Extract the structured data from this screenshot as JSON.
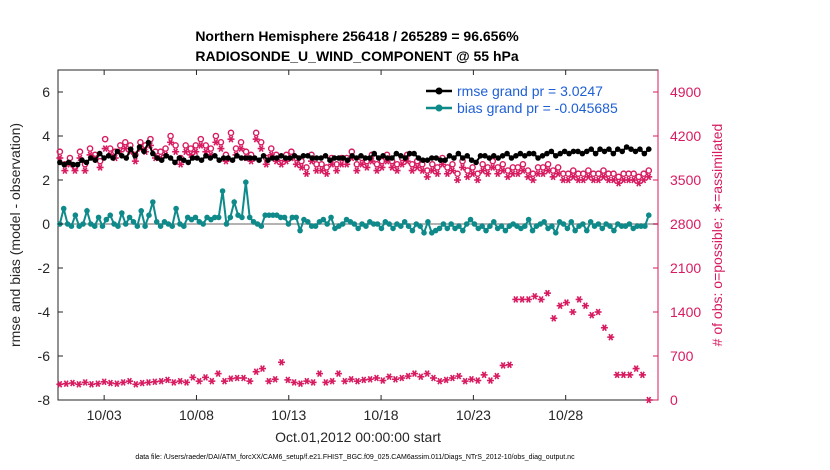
{
  "chart_data": {
    "type": "line",
    "title_line1": "Northern Hemisphere 256418 / 265289 = 96.656%",
    "title_line2": "RADIOSONDE_U_WIND_COMPONENT @ 55 hPa",
    "xlabel": "Oct.01,2012 00:00:00 start",
    "ylabel": "rmse and bias (model - observation)",
    "ylabel_right": "# of obs: o=possible; ∗=assimilated",
    "footnote": "data file: /Users/raeder/DAI/ATM_forcXX/CAM6_setup/f.e21.FHIST_BGC.f09_025.CAM6assim.011/Diags_NTrS_2012-10/obs_diag_output.nc",
    "xlim": [
      0.5,
      33
    ],
    "ylim": [
      -8,
      7
    ],
    "ylim_right": [
      0,
      5250
    ],
    "x_ticks": [
      3,
      8,
      13,
      18,
      23,
      28
    ],
    "x_tick_labels": [
      "10/03",
      "10/08",
      "10/13",
      "10/18",
      "10/23",
      "10/28"
    ],
    "y_ticks": [
      -8,
      -6,
      -4,
      -2,
      0,
      2,
      4,
      6
    ],
    "y_tick_labels": [
      "-8",
      "-6",
      "-4",
      "-2",
      "0",
      "2",
      "4",
      "6"
    ],
    "y_right_ticks": [
      0,
      700,
      1400,
      2100,
      2800,
      3500,
      4200,
      4900
    ],
    "y_right_tick_labels": [
      "0",
      "700",
      "1400",
      "2100",
      "2800",
      "3500",
      "4200",
      "4900"
    ],
    "legend_position": "top-right",
    "colors": {
      "rmse": "#000000",
      "bias": "#0f8a8a",
      "obs": "#d81b60",
      "zero_line": "#b3b3b3",
      "legend_text": "#1f5fd6"
    },
    "series": [
      {
        "name": "rmse grand pr = 3.0247",
        "axis": "left",
        "color": "#000000",
        "y_description": "daily-ish rmse, ~2.8 to 3.9",
        "values": [
          2.8,
          2.7,
          2.8,
          2.7,
          2.7,
          2.9,
          2.8,
          3.0,
          2.9,
          3.2,
          3.0,
          3.1,
          3.0,
          3.3,
          3.1,
          3.0,
          3.4,
          3.1,
          3.5,
          3.3,
          3.7,
          3.2,
          3.0,
          2.9,
          3.1,
          3.0,
          2.8,
          3.0,
          2.9,
          2.8,
          3.0,
          3.0,
          2.9,
          3.1,
          3.0,
          3.1,
          2.9,
          3.0,
          3.0,
          2.9,
          3.1,
          3.0,
          3.0,
          3.0,
          3.0,
          2.9,
          3.1,
          2.9,
          3.0,
          3.0,
          3.1,
          3.0,
          3.0,
          3.1,
          3.0,
          3.1,
          3.1,
          3.0,
          3.0,
          3.0,
          3.1,
          2.9,
          3.0,
          3.0,
          3.0,
          2.9,
          3.1,
          3.0,
          3.1,
          3.0,
          3.0,
          3.2,
          3.0,
          3.1,
          3.0,
          3.0,
          3.2,
          3.1,
          3.0,
          3.2,
          3.2,
          3.0,
          2.9,
          2.9,
          3.0,
          3.0,
          2.9,
          2.9,
          3.1,
          3.0,
          3.2,
          3.0,
          3.1,
          2.9,
          2.8,
          3.1,
          3.1,
          3.0,
          3.1,
          3.0,
          3.1,
          3.2,
          3.0,
          3.1,
          3.2,
          3.1,
          3.2,
          3.2,
          3.0,
          3.1,
          3.2,
          3.3,
          3.1,
          3.2,
          3.3,
          3.2,
          3.3,
          3.3,
          3.2,
          3.3,
          3.4,
          3.2,
          3.4,
          3.3,
          3.4,
          3.2,
          3.4,
          3.3,
          3.5,
          3.4,
          3.3,
          3.4,
          3.2,
          3.4
        ]
      },
      {
        "name": "bias grand pr = -0.045685",
        "axis": "left",
        "color": "#0f8a8a",
        "values": [
          0.0,
          0.7,
          0.0,
          -0.1,
          0.4,
          -0.1,
          0.0,
          0.6,
          0.0,
          -0.1,
          0.3,
          -0.1,
          0.2,
          0.4,
          0.0,
          -0.1,
          0.5,
          0.0,
          0.3,
          0.1,
          -0.1,
          0.6,
          -0.1,
          0.4,
          1.0,
          0.1,
          -0.1,
          0.1,
          0.0,
          -0.1,
          0.7,
          0.0,
          -0.1,
          0.3,
          0.2,
          0.3,
          0.1,
          0.0,
          0.3,
          0.2,
          0.3,
          0.3,
          1.5,
          0.0,
          0.3,
          1.0,
          0.4,
          0.3,
          1.9,
          0.3,
          0.1,
          0.0,
          -0.1,
          0.4,
          0.4,
          0.4,
          0.4,
          0.3,
          0.3,
          0.0,
          0.3,
          0.3,
          -0.3,
          0.2,
          0.1,
          -0.1,
          -0.1,
          0.1,
          0.2,
          0.0,
          0.3,
          -0.2,
          -0.1,
          0.0,
          0.2,
          0.1,
          0.0,
          -0.2,
          0.0,
          -0.1,
          0.1,
          0.0,
          0.0,
          -0.2,
          0.1,
          0.0,
          -0.2,
          0.0,
          -0.1,
          0.1,
          -0.1,
          -0.3,
          0.0,
          -0.1,
          -0.4,
          0.1,
          -0.4,
          -0.3,
          -0.2,
          0.0,
          -0.2,
          0.0,
          -0.2,
          -0.1,
          -0.3,
          0.0,
          0.2,
          0.0,
          -0.2,
          -0.1,
          -0.3,
          -0.1,
          0.1,
          -0.2,
          -0.1,
          -0.3,
          -0.1,
          0.0,
          -0.1,
          -0.2,
          -0.1,
          0.2,
          -0.3,
          -0.1,
          0.0,
          0.1,
          -0.2,
          -0.1,
          -0.4,
          0.1,
          0.0,
          -0.2,
          0.1,
          -0.3,
          -0.1,
          0.0,
          -0.3,
          0.1,
          -0.1,
          0.0,
          -0.2,
          0.0,
          -0.1,
          -0.3,
          0.0,
          -0.1,
          -0.1,
          0.0,
          -0.2,
          -0.1,
          -0.1,
          -0.1,
          0.4
        ]
      },
      {
        "name": "possible",
        "axis": "right",
        "color": "#d81b60",
        "values": [
          3950,
          3750,
          3850,
          3700,
          3950,
          3750,
          4000,
          3900,
          3800,
          4150,
          4000,
          3950,
          4050,
          4100,
          4050,
          3900,
          4100,
          4050,
          4150,
          3950,
          3950,
          4000,
          4200,
          4050,
          3850,
          4050,
          4000,
          4050,
          4150,
          4050,
          4000,
          4200,
          4100,
          3900,
          4250,
          4000,
          4100,
          3950,
          3900,
          4250,
          4100,
          3850,
          4000,
          3900,
          3850,
          3900,
          3950,
          3850,
          3800,
          3700,
          3900,
          3750,
          3750,
          3700,
          3850,
          3750,
          3850,
          3850,
          3950,
          3750,
          3850,
          3800,
          3900,
          3750,
          3800,
          3900,
          3800,
          3750,
          3850,
          3900,
          3750,
          3800,
          3750,
          3650,
          3750,
          3700,
          3850,
          3700,
          3750,
          3600,
          3800,
          3650,
          3700,
          3600,
          3750,
          3700,
          3800,
          3700,
          3750,
          3650,
          3700,
          3700,
          3750,
          3650,
          3600,
          3700,
          3700,
          3750,
          3650,
          3700,
          3600,
          3600,
          3650,
          3600,
          3600,
          3650,
          3600,
          3600,
          3650,
          3600,
          3600,
          3550,
          3600,
          3600,
          3600,
          3550,
          3600,
          3650
        ]
      },
      {
        "name": "assimilated",
        "axis": "right",
        "color": "#d81b60",
        "values": [
          3850,
          3650,
          3750,
          3650,
          3850,
          3650,
          3900,
          3850,
          3700,
          4000,
          3900,
          3850,
          3950,
          4000,
          3950,
          3800,
          4000,
          3950,
          4050,
          3850,
          3850,
          3900,
          4100,
          3950,
          3750,
          3950,
          3900,
          3950,
          4050,
          3950,
          3900,
          4100,
          4000,
          3800,
          4150,
          3900,
          4000,
          3850,
          3800,
          4150,
          4000,
          3750,
          3900,
          3800,
          3750,
          3800,
          3850,
          3750,
          3700,
          3600,
          3800,
          3650,
          3650,
          3600,
          3750,
          3650,
          3750,
          3750,
          3850,
          3650,
          3750,
          3700,
          3800,
          3650,
          3700,
          3800,
          3700,
          3650,
          3750,
          3800,
          3650,
          3700,
          3650,
          3550,
          3650,
          3600,
          3750,
          3600,
          3650,
          3500,
          3700,
          3550,
          3600,
          3500,
          3650,
          3600,
          3700,
          3600,
          3650,
          3550,
          3600,
          3600,
          3650,
          3550,
          3500,
          3600,
          3600,
          3650,
          3550,
          3600,
          3500,
          3500,
          3550,
          3500,
          3500,
          3550,
          3500,
          3500,
          3550,
          3500,
          3500,
          3450,
          3500,
          3500,
          3500,
          3450,
          3500,
          3550
        ]
      },
      {
        "name": "assimilated_alt",
        "axis": "right",
        "color": "#d81b60",
        "values": [
          250,
          260,
          270,
          250,
          280,
          250,
          260,
          290,
          270,
          260,
          280,
          300,
          250,
          270,
          280,
          290,
          300,
          320,
          280,
          300,
          280,
          360,
          300,
          360,
          300,
          420,
          300,
          340,
          350,
          350,
          300,
          450,
          500,
          300,
          330,
          600,
          320,
          280,
          260,
          300,
          280,
          420,
          280,
          300,
          420,
          300,
          330,
          300,
          320,
          330,
          350,
          310,
          370,
          330,
          350,
          380,
          420,
          370,
          420,
          350,
          300,
          320,
          350,
          380,
          300,
          330,
          310,
          400,
          310,
          380,
          550,
          560,
          1600,
          1600,
          1600,
          1650,
          1600,
          1700,
          1300,
          1500,
          1550,
          1400,
          1600,
          1500,
          1350,
          1400,
          1150,
          1000,
          400,
          400,
          400,
          500,
          400,
          0
        ]
      }
    ]
  }
}
